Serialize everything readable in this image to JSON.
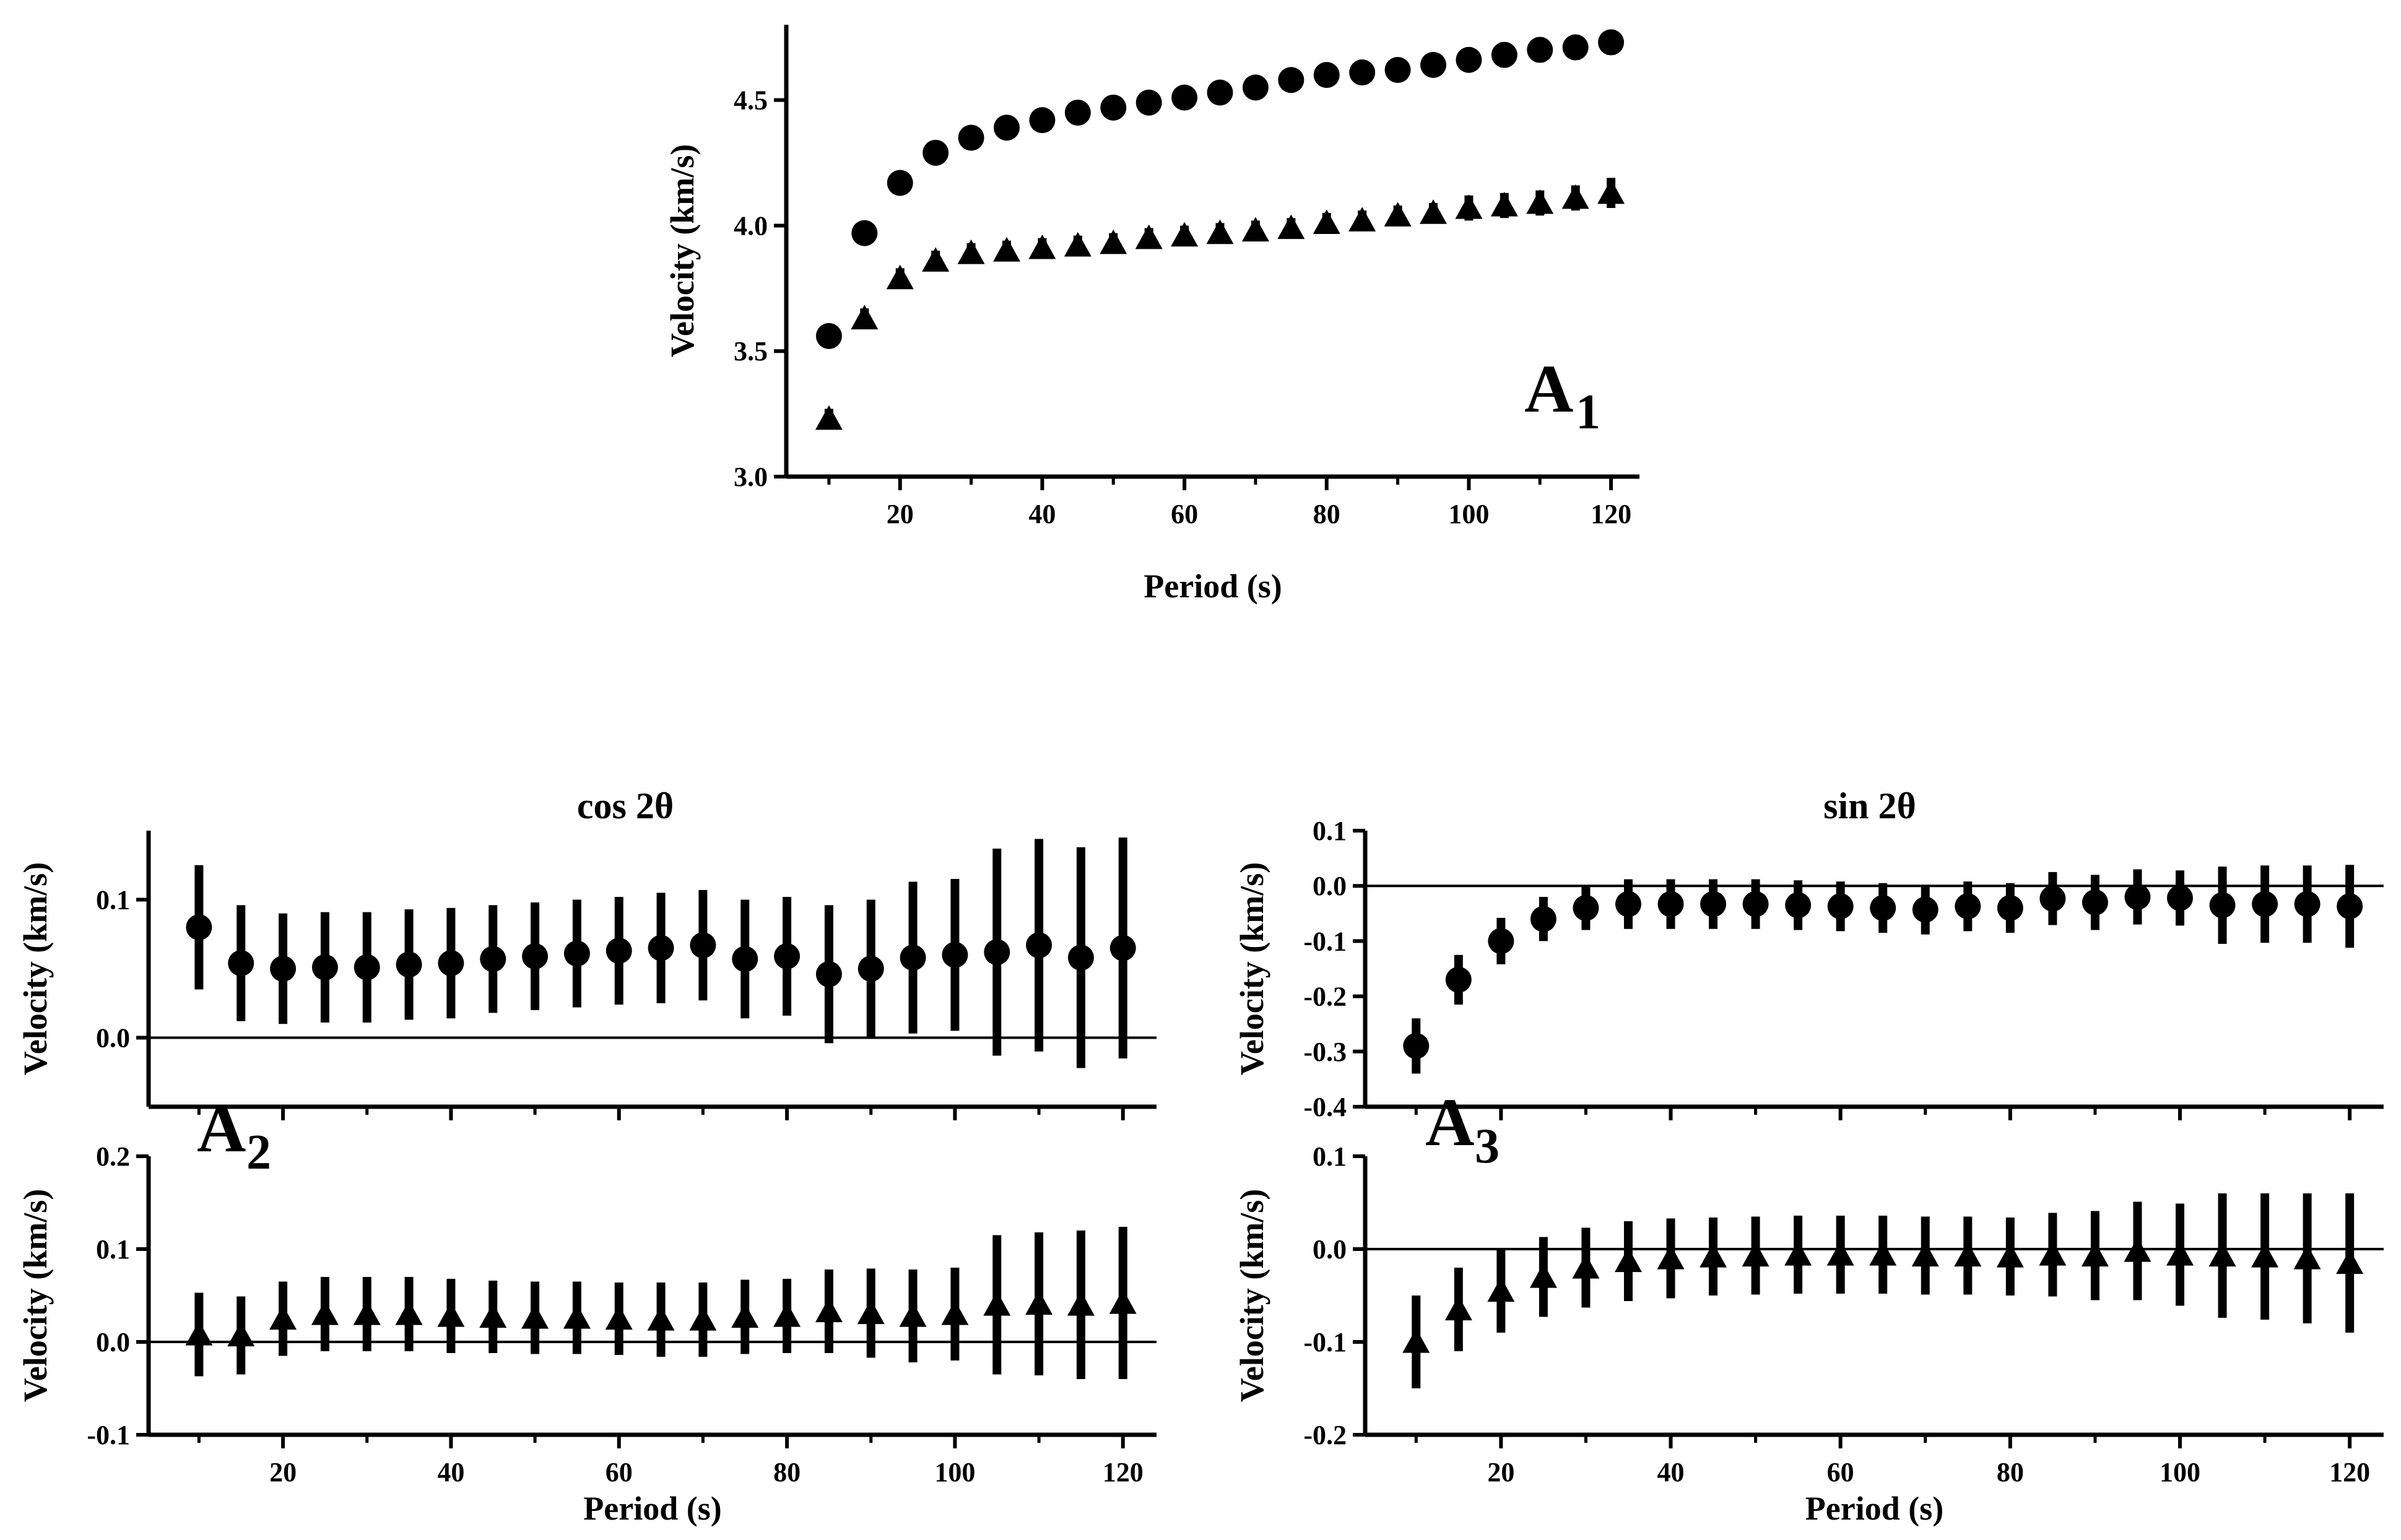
{
  "figure": {
    "titles": {
      "cos": "cos 2θ",
      "sin": "sin 2θ"
    },
    "panel_labels": {
      "A1": {
        "main": "A",
        "sub": "1"
      },
      "A2": {
        "main": "A",
        "sub": "2"
      },
      "A3": {
        "main": "A",
        "sub": "3"
      }
    },
    "color": "#000000"
  },
  "chart_data": [
    {
      "id": "A1",
      "type": "scatter",
      "title": "",
      "xlabel": "Period (s)",
      "ylabel": "Velocity (km/s)",
      "xlim": [
        4,
        124
      ],
      "ylim": [
        3.0,
        4.8
      ],
      "xticks": [
        20,
        40,
        60,
        80,
        100,
        120
      ],
      "yticks": [
        3.0,
        3.5,
        4.0,
        4.5
      ],
      "ytick_labels": [
        "3.0",
        "3.5",
        "4.0",
        "4.5"
      ],
      "x": [
        10,
        15,
        20,
        25,
        30,
        35,
        40,
        45,
        50,
        55,
        60,
        65,
        70,
        75,
        80,
        85,
        90,
        95,
        100,
        105,
        110,
        115,
        120
      ],
      "series": [
        {
          "name": "circle",
          "marker": "circle",
          "values": [
            3.56,
            3.97,
            4.17,
            4.29,
            4.35,
            4.39,
            4.42,
            4.45,
            4.47,
            4.49,
            4.51,
            4.53,
            4.55,
            4.58,
            4.6,
            4.61,
            4.62,
            4.64,
            4.66,
            4.68,
            4.7,
            4.71,
            4.73
          ],
          "err": [
            0.03,
            0.03,
            0.03,
            0.03,
            0.03,
            0.03,
            0.03,
            0.03,
            0.03,
            0.03,
            0.03,
            0.03,
            0.03,
            0.03,
            0.03,
            0.03,
            0.03,
            0.04,
            0.04,
            0.05,
            0.05,
            0.05,
            0.05
          ]
        },
        {
          "name": "triangle",
          "marker": "triangle",
          "values": [
            3.23,
            3.63,
            3.79,
            3.86,
            3.89,
            3.9,
            3.91,
            3.92,
            3.93,
            3.95,
            3.96,
            3.97,
            3.98,
            3.99,
            4.01,
            4.02,
            4.04,
            4.05,
            4.07,
            4.08,
            4.09,
            4.11,
            4.13
          ],
          "err": [
            0.04,
            0.04,
            0.04,
            0.04,
            0.04,
            0.04,
            0.04,
            0.04,
            0.04,
            0.04,
            0.04,
            0.04,
            0.04,
            0.04,
            0.04,
            0.04,
            0.04,
            0.04,
            0.05,
            0.05,
            0.05,
            0.05,
            0.06
          ]
        }
      ]
    },
    {
      "id": "A2-top",
      "type": "scatter",
      "title": "cos 2θ",
      "xlabel": "",
      "ylabel": "Velocity (km/s)",
      "xlim": [
        4,
        124
      ],
      "ylim": [
        -0.05,
        0.15
      ],
      "xticks": [],
      "yticks": [
        0.0,
        0.1
      ],
      "ytick_labels": [
        "0.0",
        "0.1"
      ],
      "zero_line": true,
      "x": [
        10,
        15,
        20,
        25,
        30,
        35,
        40,
        45,
        50,
        55,
        60,
        65,
        70,
        75,
        80,
        85,
        90,
        95,
        100,
        105,
        110,
        115,
        120
      ],
      "series": [
        {
          "name": "circle",
          "marker": "circle",
          "values": [
            0.08,
            0.054,
            0.05,
            0.051,
            0.051,
            0.053,
            0.054,
            0.057,
            0.059,
            0.061,
            0.063,
            0.065,
            0.067,
            0.057,
            0.059,
            0.046,
            0.05,
            0.058,
            0.06,
            0.062,
            0.067,
            0.058,
            0.065
          ],
          "err": [
            0.045,
            0.042,
            0.04,
            0.04,
            0.04,
            0.04,
            0.04,
            0.039,
            0.039,
            0.039,
            0.039,
            0.04,
            0.04,
            0.043,
            0.043,
            0.05,
            0.05,
            0.055,
            0.055,
            0.075,
            0.077,
            0.08,
            0.08
          ]
        }
      ]
    },
    {
      "id": "A2-bottom",
      "type": "scatter",
      "title": "",
      "xlabel": "Period (s)",
      "ylabel": "Velocity (km/s)",
      "xlim": [
        4,
        124
      ],
      "ylim": [
        -0.1,
        0.2
      ],
      "xticks": [
        20,
        40,
        60,
        80,
        100,
        120
      ],
      "yticks": [
        -0.1,
        0.0,
        0.1,
        0.2
      ],
      "ytick_labels": [
        "-0.1",
        "0.0",
        "0.1",
        "0.2"
      ],
      "zero_line": true,
      "x": [
        10,
        15,
        20,
        25,
        30,
        35,
        40,
        45,
        50,
        55,
        60,
        65,
        70,
        75,
        80,
        85,
        90,
        95,
        100,
        105,
        110,
        115,
        120
      ],
      "series": [
        {
          "name": "triangle",
          "marker": "triangle",
          "values": [
            0.008,
            0.007,
            0.025,
            0.03,
            0.03,
            0.03,
            0.028,
            0.027,
            0.026,
            0.026,
            0.025,
            0.024,
            0.024,
            0.027,
            0.028,
            0.033,
            0.031,
            0.028,
            0.03,
            0.04,
            0.041,
            0.04,
            0.042
          ],
          "err": [
            0.045,
            0.042,
            0.04,
            0.04,
            0.04,
            0.04,
            0.04,
            0.039,
            0.039,
            0.039,
            0.039,
            0.04,
            0.04,
            0.04,
            0.04,
            0.045,
            0.048,
            0.05,
            0.05,
            0.075,
            0.077,
            0.08,
            0.082
          ]
        }
      ]
    },
    {
      "id": "A3-top",
      "type": "scatter",
      "title": "sin 2θ",
      "xlabel": "",
      "ylabel": "Velocity (km/s)",
      "xlim": [
        4,
        124
      ],
      "ylim": [
        -0.4,
        0.1
      ],
      "xticks": [],
      "yticks": [
        -0.4,
        -0.3,
        -0.2,
        -0.1,
        0.0,
        0.1
      ],
      "ytick_labels": [
        "-0.4",
        "-0.3",
        "-0.2",
        "-0.1",
        "0.0",
        "0.1"
      ],
      "zero_line": true,
      "x": [
        10,
        15,
        20,
        25,
        30,
        35,
        40,
        45,
        50,
        55,
        60,
        65,
        70,
        75,
        80,
        85,
        90,
        95,
        100,
        105,
        110,
        115,
        120
      ],
      "series": [
        {
          "name": "circle",
          "marker": "circle",
          "values": [
            -0.29,
            -0.17,
            -0.1,
            -0.06,
            -0.04,
            -0.033,
            -0.033,
            -0.033,
            -0.033,
            -0.035,
            -0.037,
            -0.04,
            -0.043,
            -0.037,
            -0.04,
            -0.023,
            -0.03,
            -0.02,
            -0.022,
            -0.035,
            -0.033,
            -0.033,
            -0.037
          ],
          "err": [
            0.05,
            0.045,
            0.042,
            0.04,
            0.04,
            0.045,
            0.045,
            0.045,
            0.045,
            0.045,
            0.045,
            0.045,
            0.045,
            0.045,
            0.045,
            0.048,
            0.05,
            0.05,
            0.05,
            0.07,
            0.07,
            0.07,
            0.075
          ]
        }
      ]
    },
    {
      "id": "A3-bottom",
      "type": "scatter",
      "title": "",
      "xlabel": "Period (s)",
      "ylabel": "Velocity (km/s)",
      "xlim": [
        4,
        124
      ],
      "ylim": [
        -0.2,
        0.1
      ],
      "xticks": [
        20,
        40,
        60,
        80,
        100,
        120
      ],
      "yticks": [
        -0.2,
        -0.1,
        0.0,
        0.1
      ],
      "ytick_labels": [
        "-0.2",
        "-0.1",
        "0.0",
        "0.1"
      ],
      "zero_line": true,
      "x": [
        10,
        15,
        20,
        25,
        30,
        35,
        40,
        45,
        50,
        55,
        60,
        65,
        70,
        75,
        80,
        85,
        90,
        95,
        100,
        105,
        110,
        115,
        120
      ],
      "series": [
        {
          "name": "triangle",
          "marker": "triangle",
          "values": [
            -0.1,
            -0.065,
            -0.045,
            -0.03,
            -0.02,
            -0.013,
            -0.01,
            -0.008,
            -0.007,
            -0.006,
            -0.006,
            -0.006,
            -0.007,
            -0.007,
            -0.008,
            -0.006,
            -0.007,
            -0.002,
            -0.006,
            -0.007,
            -0.008,
            -0.01,
            -0.015
          ],
          "err": [
            0.05,
            0.045,
            0.045,
            0.043,
            0.043,
            0.043,
            0.043,
            0.042,
            0.042,
            0.042,
            0.042,
            0.042,
            0.042,
            0.042,
            0.042,
            0.045,
            0.048,
            0.053,
            0.055,
            0.067,
            0.068,
            0.07,
            0.075
          ]
        }
      ]
    }
  ]
}
